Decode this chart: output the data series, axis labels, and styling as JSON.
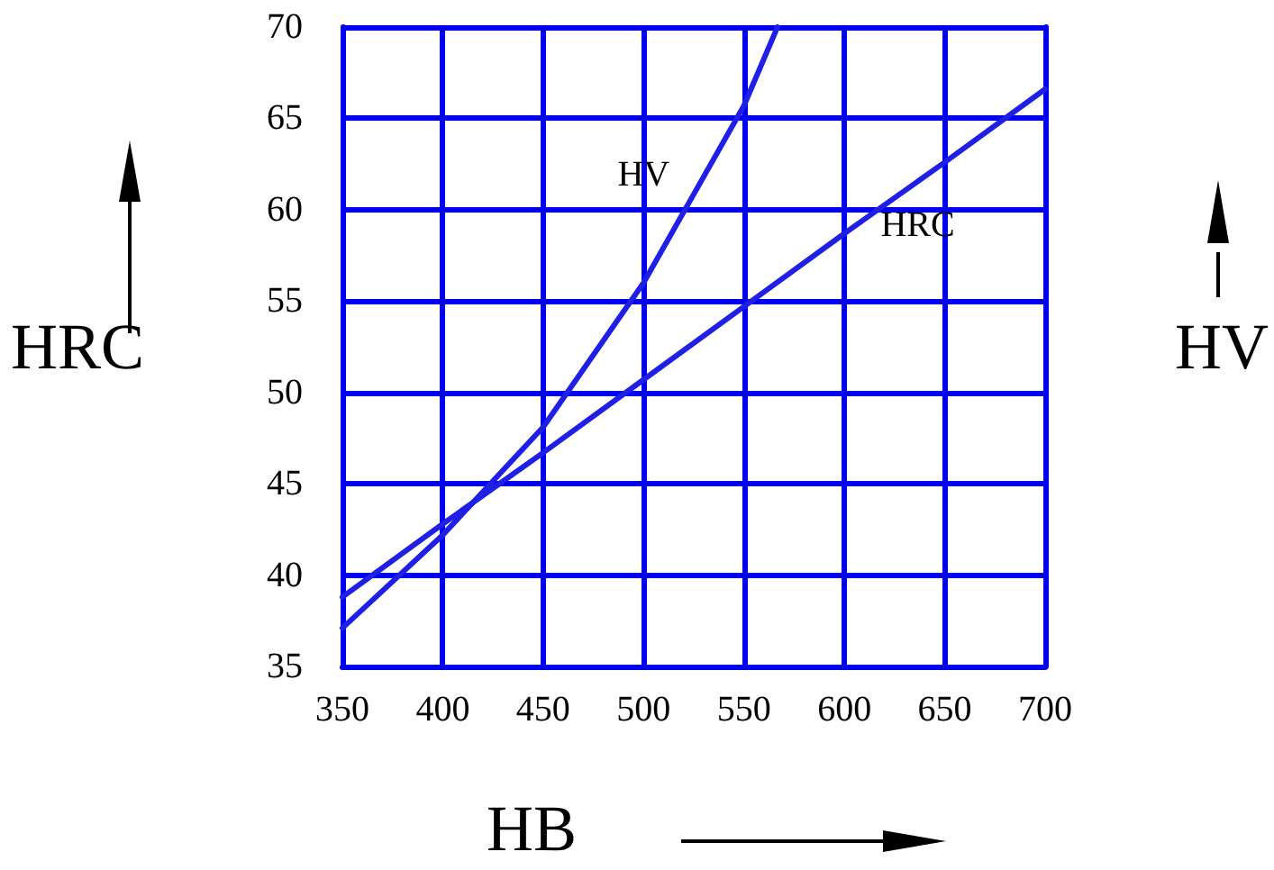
{
  "chart_data": {
    "type": "line",
    "xlabel": "HB",
    "ylabel": "HRC",
    "y2label": "HV",
    "xlim": [
      350,
      700
    ],
    "xticks": [
      350,
      400,
      450,
      500,
      550,
      600,
      650,
      700
    ],
    "ylim": [
      35,
      70
    ],
    "yticks": [
      35,
      40,
      45,
      50,
      55,
      60,
      65,
      70
    ],
    "grid": true,
    "marker": "none",
    "line_style": "solid",
    "series": [
      {
        "name": "HV",
        "color": "#1f1fe6",
        "x": [
          350,
          400,
          450,
          500,
          550,
          566.7
        ],
        "values": [
          37.1,
          42.2,
          48.1,
          56,
          65.7,
          70
        ]
      },
      {
        "name": "HRC",
        "color": "#1f1fe6",
        "x": [
          350,
          400,
          450,
          500,
          550,
          600,
          650,
          700
        ],
        "values": [
          38.8,
          42.8,
          46.7,
          50.7,
          54.7,
          58.7,
          62.6,
          66.6
        ]
      }
    ]
  }
}
